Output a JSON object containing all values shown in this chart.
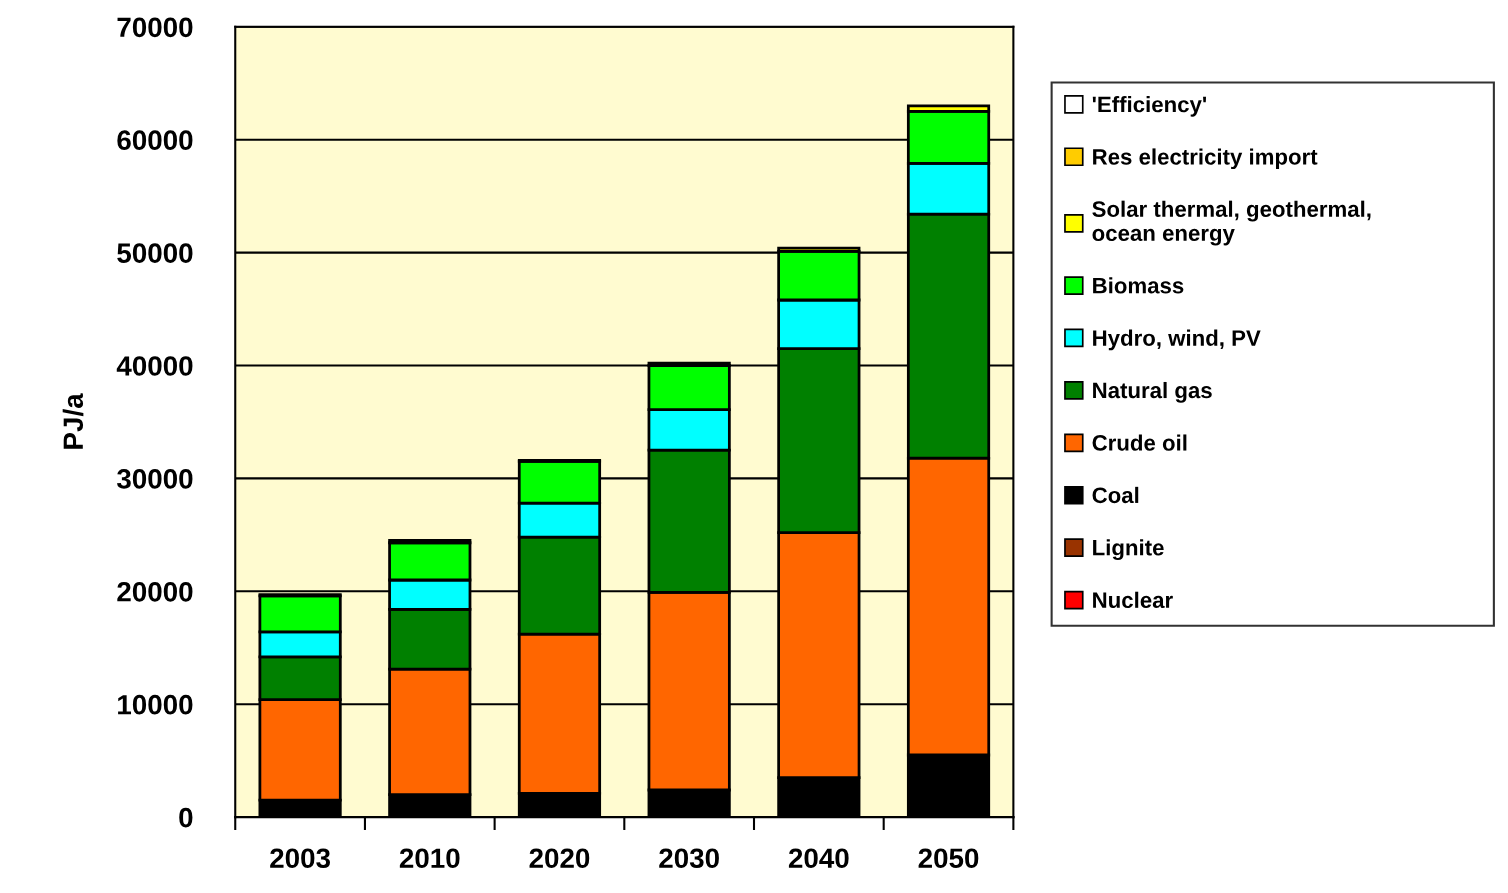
{
  "chart_data": {
    "type": "bar",
    "stacked": true,
    "ylabel": "PJ/a",
    "categories": [
      "2003",
      "2010",
      "2020",
      "2030",
      "2040",
      "2050"
    ],
    "ylim": [
      0,
      70000
    ],
    "yticks": [
      0,
      10000,
      20000,
      30000,
      40000,
      50000,
      60000,
      70000
    ],
    "grid": "y",
    "legend": "right",
    "series": [
      {
        "name": "Nuclear",
        "color": "#ff0000",
        "values": [
          0,
          0,
          0,
          0,
          0,
          0
        ]
      },
      {
        "name": "Lignite",
        "color": "#993300",
        "values": [
          0,
          0,
          0,
          0,
          0,
          0
        ]
      },
      {
        "name": "Coal",
        "color": "#000000",
        "values": [
          1500,
          2000,
          2100,
          2400,
          3500,
          5500
        ]
      },
      {
        "name": "Crude oil",
        "color": "#ff6600",
        "values": [
          8900,
          11100,
          14100,
          17500,
          21700,
          26300
        ]
      },
      {
        "name": "Natural gas",
        "color": "#008000",
        "values": [
          3800,
          5300,
          8600,
          12600,
          16300,
          21600
        ]
      },
      {
        "name": "Hydro, wind, PV",
        "color": "#00ffff",
        "values": [
          2200,
          2600,
          3000,
          3600,
          4300,
          4500
        ]
      },
      {
        "name": "Biomass",
        "color": "#00ff00",
        "values": [
          3200,
          3300,
          3700,
          3900,
          4300,
          4600
        ]
      },
      {
        "name": "Solar thermal, geothermal,\nocean energy",
        "color": "#ffff00",
        "values": [
          100,
          200,
          100,
          200,
          300,
          500
        ]
      },
      {
        "name": "Res electricity import",
        "color": "#ffcc00",
        "values": [
          0,
          0,
          0,
          0,
          0,
          0
        ]
      },
      {
        "name": "'Efficiency'",
        "color": "#ffffff",
        "values": [
          0,
          0,
          0,
          0,
          0,
          0
        ]
      }
    ]
  }
}
